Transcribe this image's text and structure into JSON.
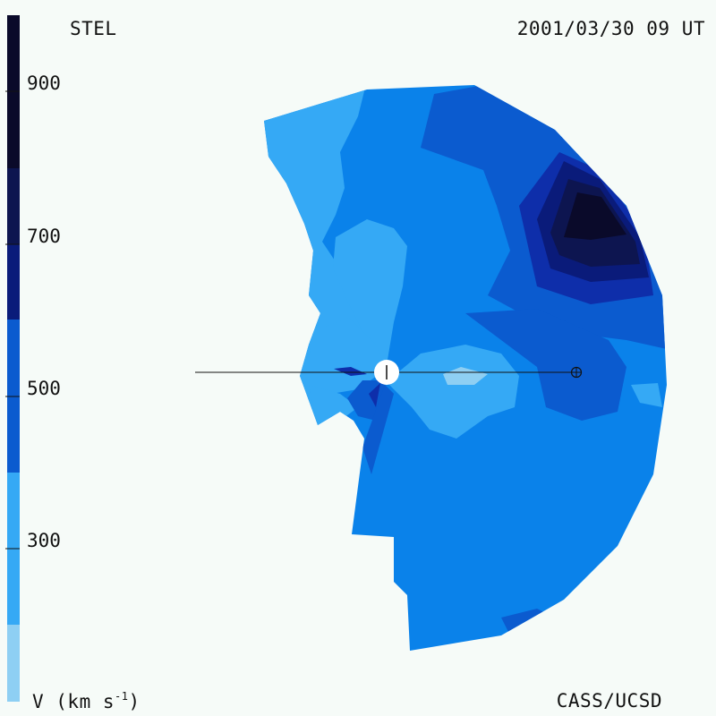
{
  "header": {
    "source": "STEL",
    "timestamp": "2001/03/30 09 UT"
  },
  "footer": {
    "units_prefix": "V (km s",
    "units_exponent": "-1",
    "units_suffix": ")",
    "credit": "CASS/UCSD"
  },
  "colorbar": {
    "tick_labels": [
      "900",
      "700",
      "500",
      "300"
    ],
    "levels": [
      {
        "color": "#0a0a2a"
      },
      {
        "color": "#0d1550"
      },
      {
        "color": "#0a1b7a"
      },
      {
        "color": "#0e2eaa"
      },
      {
        "color": "#0b5bcf"
      },
      {
        "color": "#0a82ea"
      },
      {
        "color": "#35a9f5"
      },
      {
        "color": "#8ecff3"
      }
    ]
  },
  "map": {
    "sun_marker": "sun-symbol",
    "earth_marker": "earth-symbol"
  }
}
